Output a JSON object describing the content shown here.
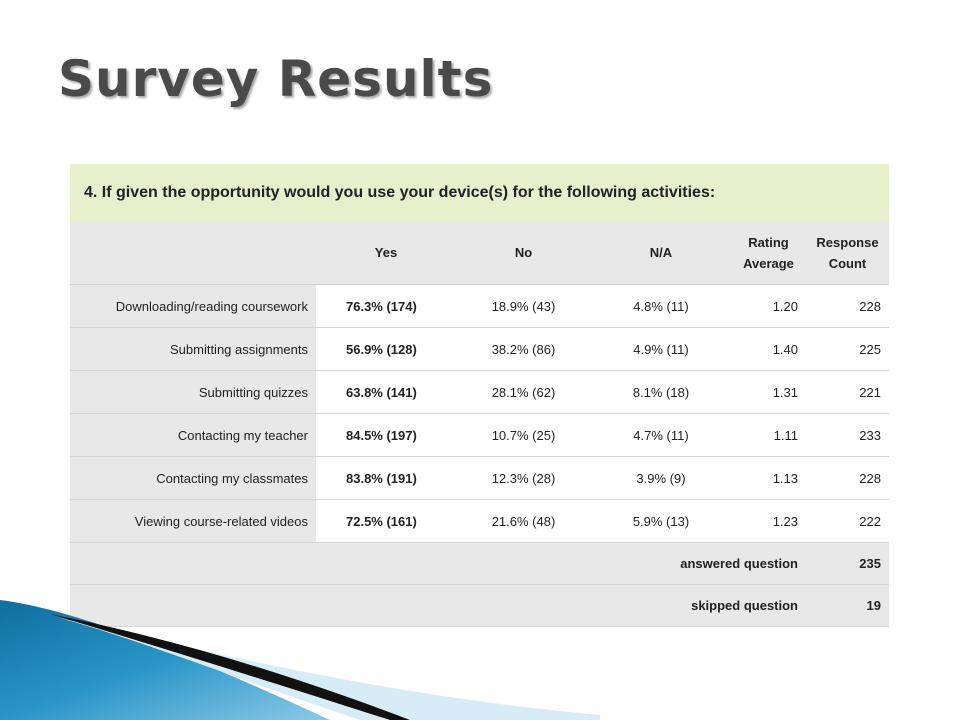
{
  "slide": {
    "title": "Survey Results"
  },
  "survey": {
    "question": "4. If given the opportunity would you use your device(s) for the following activities:",
    "columns": [
      "Yes",
      "No",
      "N/A",
      "Rating Average",
      "Response Count"
    ],
    "rows": [
      {
        "activity": "Downloading/reading coursework",
        "yes": "76.3% (174)",
        "no": "18.9% (43)",
        "na": "4.8% (11)",
        "rating_average": "1.20",
        "response_count": "228"
      },
      {
        "activity": "Submitting assignments",
        "yes": "56.9% (128)",
        "no": "38.2% (86)",
        "na": "4.9% (11)",
        "rating_average": "1.40",
        "response_count": "225"
      },
      {
        "activity": "Submitting quizzes",
        "yes": "63.8% (141)",
        "no": "28.1% (62)",
        "na": "8.1% (18)",
        "rating_average": "1.31",
        "response_count": "221"
      },
      {
        "activity": "Contacting my teacher",
        "yes": "84.5% (197)",
        "no": "10.7% (25)",
        "na": "4.7% (11)",
        "rating_average": "1.11",
        "response_count": "233"
      },
      {
        "activity": "Contacting my classmates",
        "yes": "83.8% (191)",
        "no": "12.3% (28)",
        "na": "3.9% (9)",
        "rating_average": "1.13",
        "response_count": "228"
      },
      {
        "activity": "Viewing course-related videos",
        "yes": "72.5% (161)",
        "no": "21.6% (48)",
        "na": "5.9% (13)",
        "rating_average": "1.23",
        "response_count": "222"
      }
    ],
    "answered": {
      "label": "answered question",
      "value": "235"
    },
    "skipped": {
      "label": "skipped question",
      "value": "19"
    }
  },
  "colors": {
    "question_header_bg": "#e7efcc",
    "table_gray": "#e8e8e8",
    "title_text": "#4a4a4a",
    "deco_blue": "#1b7fb0",
    "deco_dark": "#111111"
  }
}
